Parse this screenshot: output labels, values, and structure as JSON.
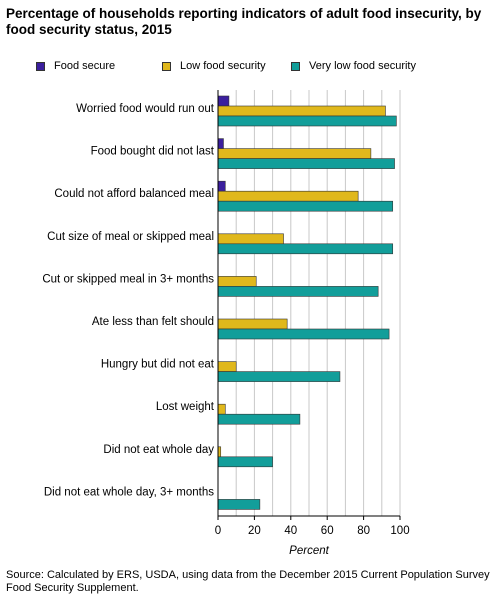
{
  "title": "Percentage of households reporting indicators of adult food insecurity, by food security status, 2015",
  "source": "Source: Calculated by ERS, USDA, using data from the December 2015 Current Population Survey Food Security Supplement.",
  "colors": {
    "food_secure": "#3b1f9e",
    "low_food_security": "#e0b81c",
    "very_low_food_security": "#129e9a",
    "grid": "#c8c8c8"
  },
  "chart_data": {
    "type": "bar",
    "orientation": "horizontal",
    "title": "Percentage of households reporting indicators of adult food insecurity, by food security status, 2015",
    "xlabel": "Percent",
    "ylabel": "",
    "xlim": [
      0,
      100
    ],
    "xticks": [
      "0",
      "20",
      "40",
      "60",
      "80",
      "100"
    ],
    "grid": "vertical",
    "legend_position": "top",
    "categories": [
      "Worried food would run out",
      "Food bought did not last",
      "Could not afford balanced meal",
      "Cut size of meal or skipped meal",
      "Cut or skipped meal in 3+ months",
      "Ate less than felt should",
      "Hungry but did not eat",
      "Lost weight",
      "Did not eat whole day",
      "Did not eat whole day, 3+ months"
    ],
    "series": [
      {
        "name": "Food secure",
        "values": [
          6,
          3,
          4,
          0,
          0,
          0,
          0,
          0,
          0,
          0
        ]
      },
      {
        "name": "Low food security",
        "values": [
          92,
          84,
          77,
          36,
          21,
          38,
          10,
          4,
          1.5,
          0
        ]
      },
      {
        "name": "Very low food security",
        "values": [
          98,
          97,
          96,
          96,
          88,
          94,
          67,
          45,
          30,
          23
        ]
      }
    ]
  }
}
